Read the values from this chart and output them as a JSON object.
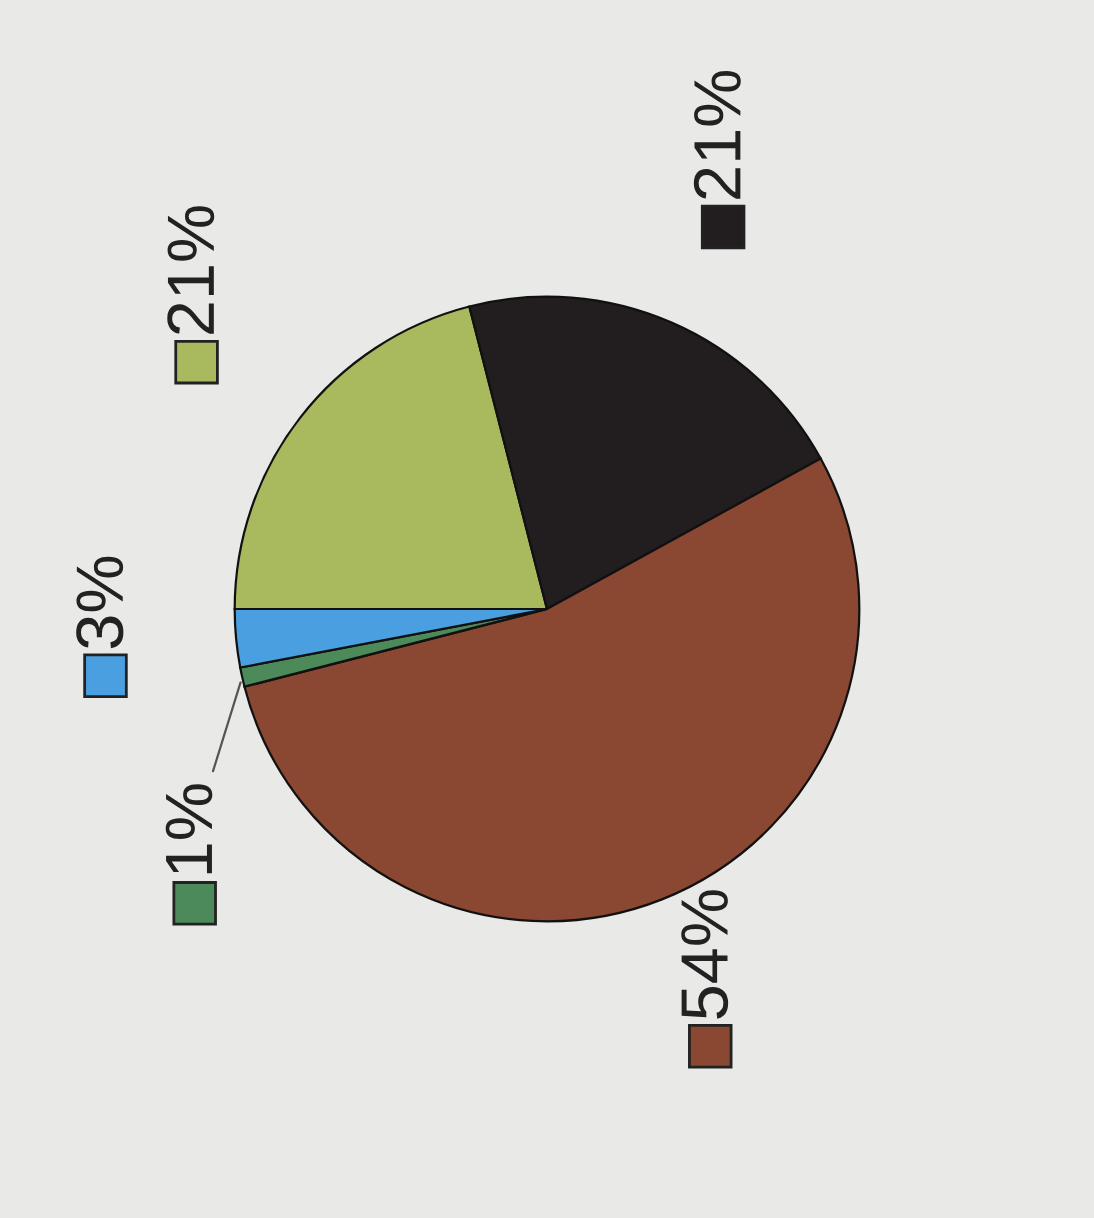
{
  "chart_data": {
    "type": "pie",
    "categories": [
      null,
      null,
      null,
      null,
      null
    ],
    "values": [
      21,
      21,
      54,
      1,
      3
    ],
    "colors": [
      "#a9b95e",
      "#221e1f",
      "#8a4732",
      "#4c8a5a",
      "#4a9fe0"
    ],
    "value_labels": [
      "21%",
      "21%",
      "54%",
      "1%",
      "3%"
    ]
  }
}
